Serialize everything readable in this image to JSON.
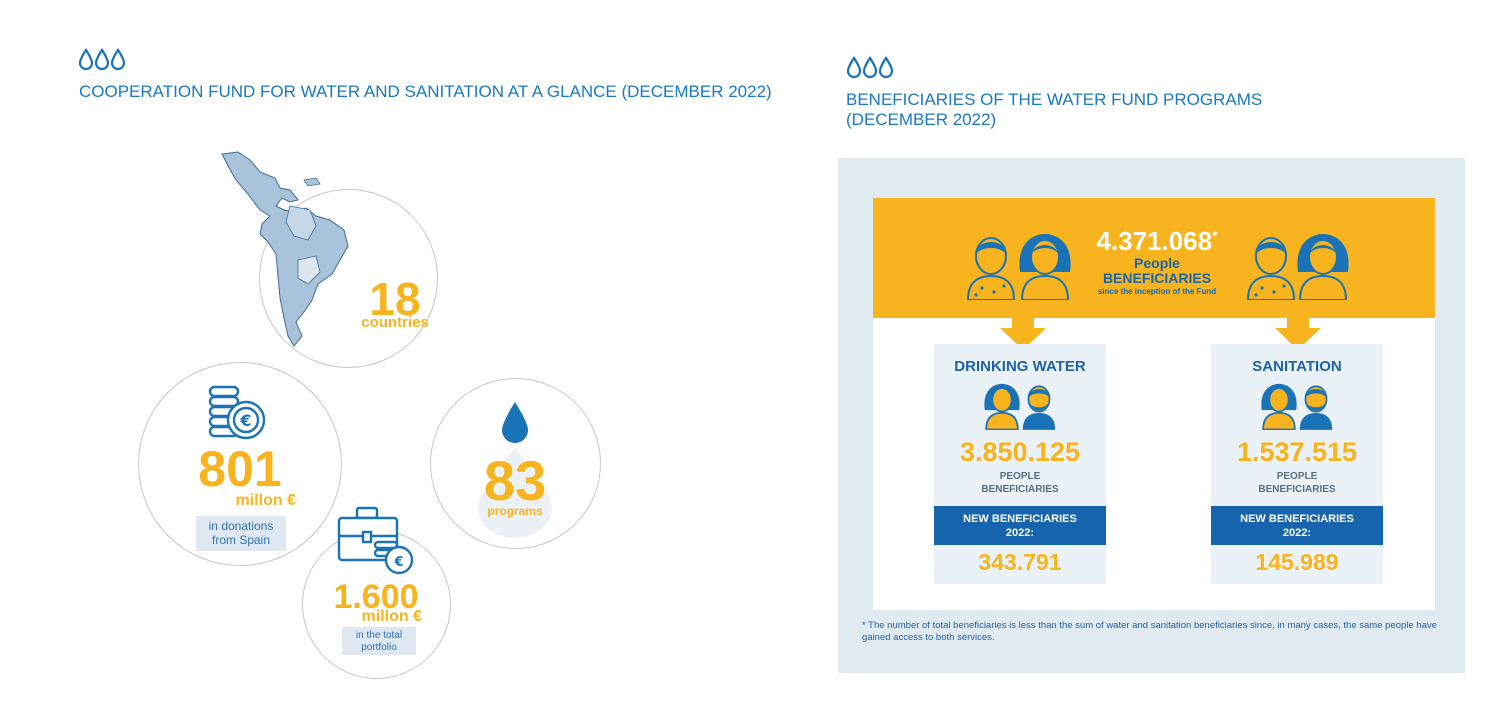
{
  "left": {
    "drops": "ôôô",
    "title": "COOPERATION FUND FOR WATER AND SANITATION AT A GLANCE (DECEMBER 2022)",
    "countries": {
      "value": "18",
      "label": "countries"
    },
    "donations": {
      "value": "801",
      "unit": "millon €",
      "note": "in donations from Spain"
    },
    "programs": {
      "value": "83",
      "label": "programs"
    },
    "portfolio": {
      "value": "1.600",
      "unit": "millon €",
      "note": "in the total portfolio"
    }
  },
  "right": {
    "drops": "ôôô",
    "title_line1": "BENEFICIARIES OF THE WATER FUND PROGRAMS",
    "title_line2": "(DECEMBER 2022)",
    "total": {
      "value": "4.371.068",
      "star": "*",
      "line1": "People",
      "line2": "BENEFICIARIES",
      "line3": "since the inception of the Fund"
    },
    "drinking": {
      "title": "DRINKING WATER",
      "value": "3.850.125",
      "label1": "PEOPLE",
      "label2": "BENEFICIARIES",
      "new_label1": "NEW BENEFICIARIES",
      "new_label2": "2022:",
      "new_value": "343.791"
    },
    "sanitation": {
      "title": "SANITATION",
      "value": "1.537.515",
      "label1": "PEOPLE",
      "label2": "BENEFICIARIES",
      "new_label1": "NEW BENEFICIARIES",
      "new_label2": "2022:",
      "new_value": "145.989"
    },
    "footnote": "* The number of total beneficiaries is less than the sum of water and sanitation beneficiaries since, in many cases, the same people have gained access to both services."
  },
  "colors": {
    "accent": "#f7b41e",
    "blue": "#1764ae",
    "title_blue": "#1a79c0",
    "panel": "#e0eaf1"
  },
  "icons": [
    "water-drops-icon",
    "latin-america-map-icon",
    "euro-coins-icon",
    "water-drop-icon",
    "briefcase-euro-icon",
    "man-icon",
    "woman-icon",
    "arrow-down-icon"
  ]
}
